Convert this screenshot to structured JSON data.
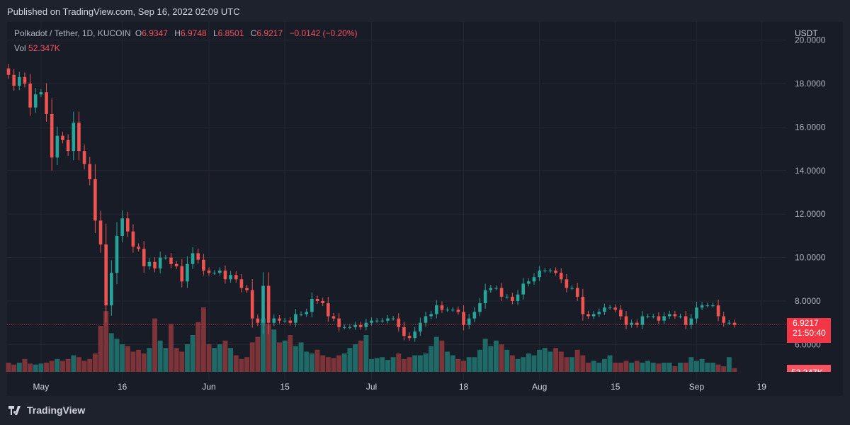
{
  "header": {
    "published": "Published on TradingView.com, Sep 16, 2022 02:09 UTC"
  },
  "legend": {
    "symbol": "Polkadot / Tether, 1D, KUCOIN",
    "o_label": "O",
    "o_value": "6.9347",
    "h_label": "H",
    "h_value": "6.9748",
    "l_label": "L",
    "l_value": "6.8501",
    "c_label": "C",
    "c_value": "6.9217",
    "change": "−0.0142 (−0.20%)",
    "vol_label": "Vol",
    "vol_value": "52.347K"
  },
  "axis": {
    "currency": "USDT",
    "price_tag": "6.9217",
    "countdown": "21:50:40",
    "vol_tag": "52.347K"
  },
  "footer": {
    "brand": "TradingView"
  },
  "colors": {
    "up": "#26a69a",
    "down": "#ef5350",
    "up_vol": "#1f6a66",
    "down_vol": "#7c3439"
  },
  "chart_data": {
    "type": "candlestick",
    "y_ticks": [
      "20.0000",
      "18.0000",
      "16.0000",
      "14.0000",
      "12.0000",
      "10.0000",
      "8.0000",
      "6.0000"
    ],
    "ylim": [
      5.5,
      20.3
    ],
    "x_ticks": [
      "May",
      "16",
      "Jun",
      "15",
      "Jul",
      "18",
      "Aug",
      "15",
      "Sep",
      "19"
    ],
    "last_price": 6.9217,
    "period": "2022-04-25 to 2022-09-16 (daily)",
    "close": [
      18.4,
      17.9,
      18.3,
      18.0,
      16.9,
      17.5,
      17.6,
      16.6,
      14.6,
      15.6,
      15.4,
      14.9,
      16.2,
      14.9,
      14.3,
      13.6,
      11.7,
      10.6,
      7.8,
      9.3,
      11.0,
      11.8,
      11.2,
      10.5,
      10.4,
      9.6,
      9.8,
      9.5,
      10.0,
      10.0,
      9.7,
      9.6,
      8.9,
      9.7,
      10.2,
      9.9,
      9.4,
      9.3,
      9.3,
      9.4,
      9.0,
      9.2,
      9.0,
      8.6,
      8.5,
      7.2,
      7.0,
      8.7,
      7.0,
      7.2,
      7.1,
      7.1,
      7.0,
      7.4,
      7.4,
      7.5,
      8.1,
      8.0,
      7.9,
      7.3,
      7.2,
      6.8,
      6.8,
      6.8,
      6.9,
      6.8,
      7.0,
      7.1,
      7.1,
      7.1,
      7.2,
      7.2,
      6.8,
      6.4,
      6.3,
      6.6,
      7.0,
      7.3,
      7.4,
      7.8,
      7.6,
      7.6,
      7.6,
      7.5,
      6.9,
      7.2,
      7.5,
      7.9,
      8.5,
      8.6,
      8.6,
      8.2,
      8.2,
      8.0,
      8.3,
      8.8,
      8.9,
      9.1,
      9.4,
      9.4,
      9.4,
      9.3,
      9.0,
      8.6,
      8.6,
      8.2,
      7.4,
      7.3,
      7.4,
      7.5,
      7.7,
      7.7,
      7.6,
      7.3,
      6.9,
      7.0,
      6.9,
      7.3,
      7.3,
      7.3,
      7.1,
      7.3,
      7.4,
      7.3,
      7.3,
      6.9,
      7.2,
      7.7,
      7.8,
      7.8,
      7.8,
      7.3,
      7.0,
      7.0,
      6.9
    ],
    "volume": [
      5.0,
      4.0,
      5.0,
      7.0,
      4.5,
      4.0,
      4.5,
      5.0,
      6.0,
      7.0,
      6.0,
      7.0,
      9.0,
      8.0,
      6.0,
      7.0,
      10.0,
      25.0,
      33.0,
      21.0,
      18.0,
      15.0,
      14.0,
      11.0,
      12.0,
      10.0,
      13.0,
      29.0,
      17.0,
      13.0,
      26.0,
      13.0,
      11.0,
      15.0,
      20.0,
      27.0,
      35.0,
      15.0,
      13.0,
      15.0,
      17.0,
      13.0,
      9.0,
      7.0,
      8.0,
      16.0,
      19.0,
      29.0,
      26.0,
      23.0,
      16.0,
      17.0,
      20.0,
      14.0,
      16.0,
      11.0,
      10.0,
      12.0,
      9.0,
      8.0,
      7.5,
      9.0,
      10.0,
      13.0,
      15.0,
      17.0,
      20.0,
      7.0,
      7.5,
      8.0,
      6.5,
      8.0,
      10.0,
      7.0,
      8.0,
      9.0,
      9.0,
      10.0,
      14.0,
      19.0,
      17.0,
      11.0,
      9.0,
      7.0,
      6.0,
      8.0,
      8.0,
      12.0,
      18.0,
      14.0,
      17.0,
      15.0,
      12.0,
      9.0,
      7.0,
      8.0,
      10.0,
      9.0,
      12.0,
      13.0,
      11.0,
      13.0,
      11.0,
      8.0,
      8.0,
      12.0,
      9.0,
      5.0,
      6.0,
      5.0,
      7.0,
      9.0,
      5.0,
      5.0,
      6.0,
      5.0,
      6.0,
      5.0,
      6.0,
      5.0,
      4.5,
      5.0,
      5.0,
      3.0,
      5.0,
      5.0,
      8.0,
      6.0,
      7.0,
      5.0,
      5.0,
      4.0,
      3.0,
      8.0,
      2.0
    ]
  }
}
